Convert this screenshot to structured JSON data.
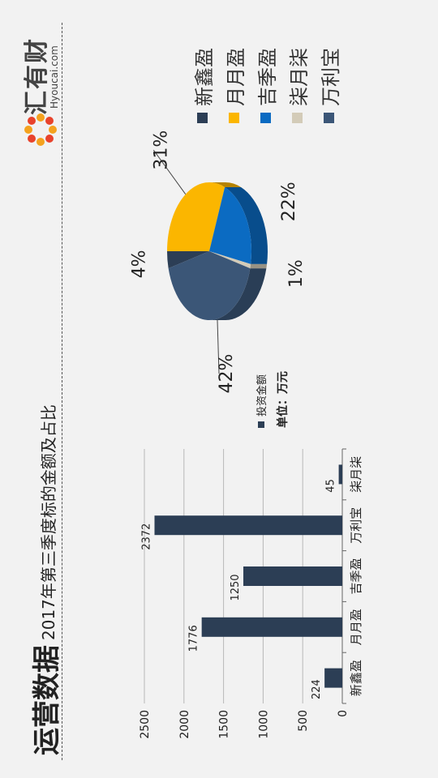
{
  "page": {
    "title": "运营数据",
    "subtitle": "2017年第三季度标的金额及占比"
  },
  "logo": {
    "name": "汇有财",
    "domain": "Hyoucai.com"
  },
  "colors": {
    "xinxin": "#2c3e55",
    "yueyue": "#fbb600",
    "jiji": "#0b6bc2",
    "qiyue": "#d3cbb8",
    "wanli": "#3b5677"
  },
  "chart_data": [
    {
      "type": "bar",
      "categories": [
        "新鑫盈",
        "月月盈",
        "吉季盈",
        "万利宝",
        "柒月柒"
      ],
      "series": [
        {
          "name": "投资金额",
          "values": [
            224,
            1776,
            1250,
            2372,
            45
          ]
        }
      ],
      "ylim": [
        0,
        2500
      ],
      "yticks": [
        0,
        500,
        1000,
        1500,
        2000,
        2500
      ],
      "unit_label": "单位：万元",
      "grid": true,
      "legend": "right",
      "color": "#2c3e55"
    },
    {
      "type": "pie",
      "labels": [
        "新鑫盈",
        "月月盈",
        "吉季盈",
        "柒月柒",
        "万利宝"
      ],
      "values": [
        4,
        31,
        22,
        1,
        42
      ],
      "value_labels": [
        "4%",
        "31%",
        "22%",
        "1%",
        "42%"
      ],
      "colors": [
        "#2c3e55",
        "#fbb600",
        "#0b6bc2",
        "#d3cbb8",
        "#3b5677"
      ],
      "legend": "right"
    }
  ]
}
